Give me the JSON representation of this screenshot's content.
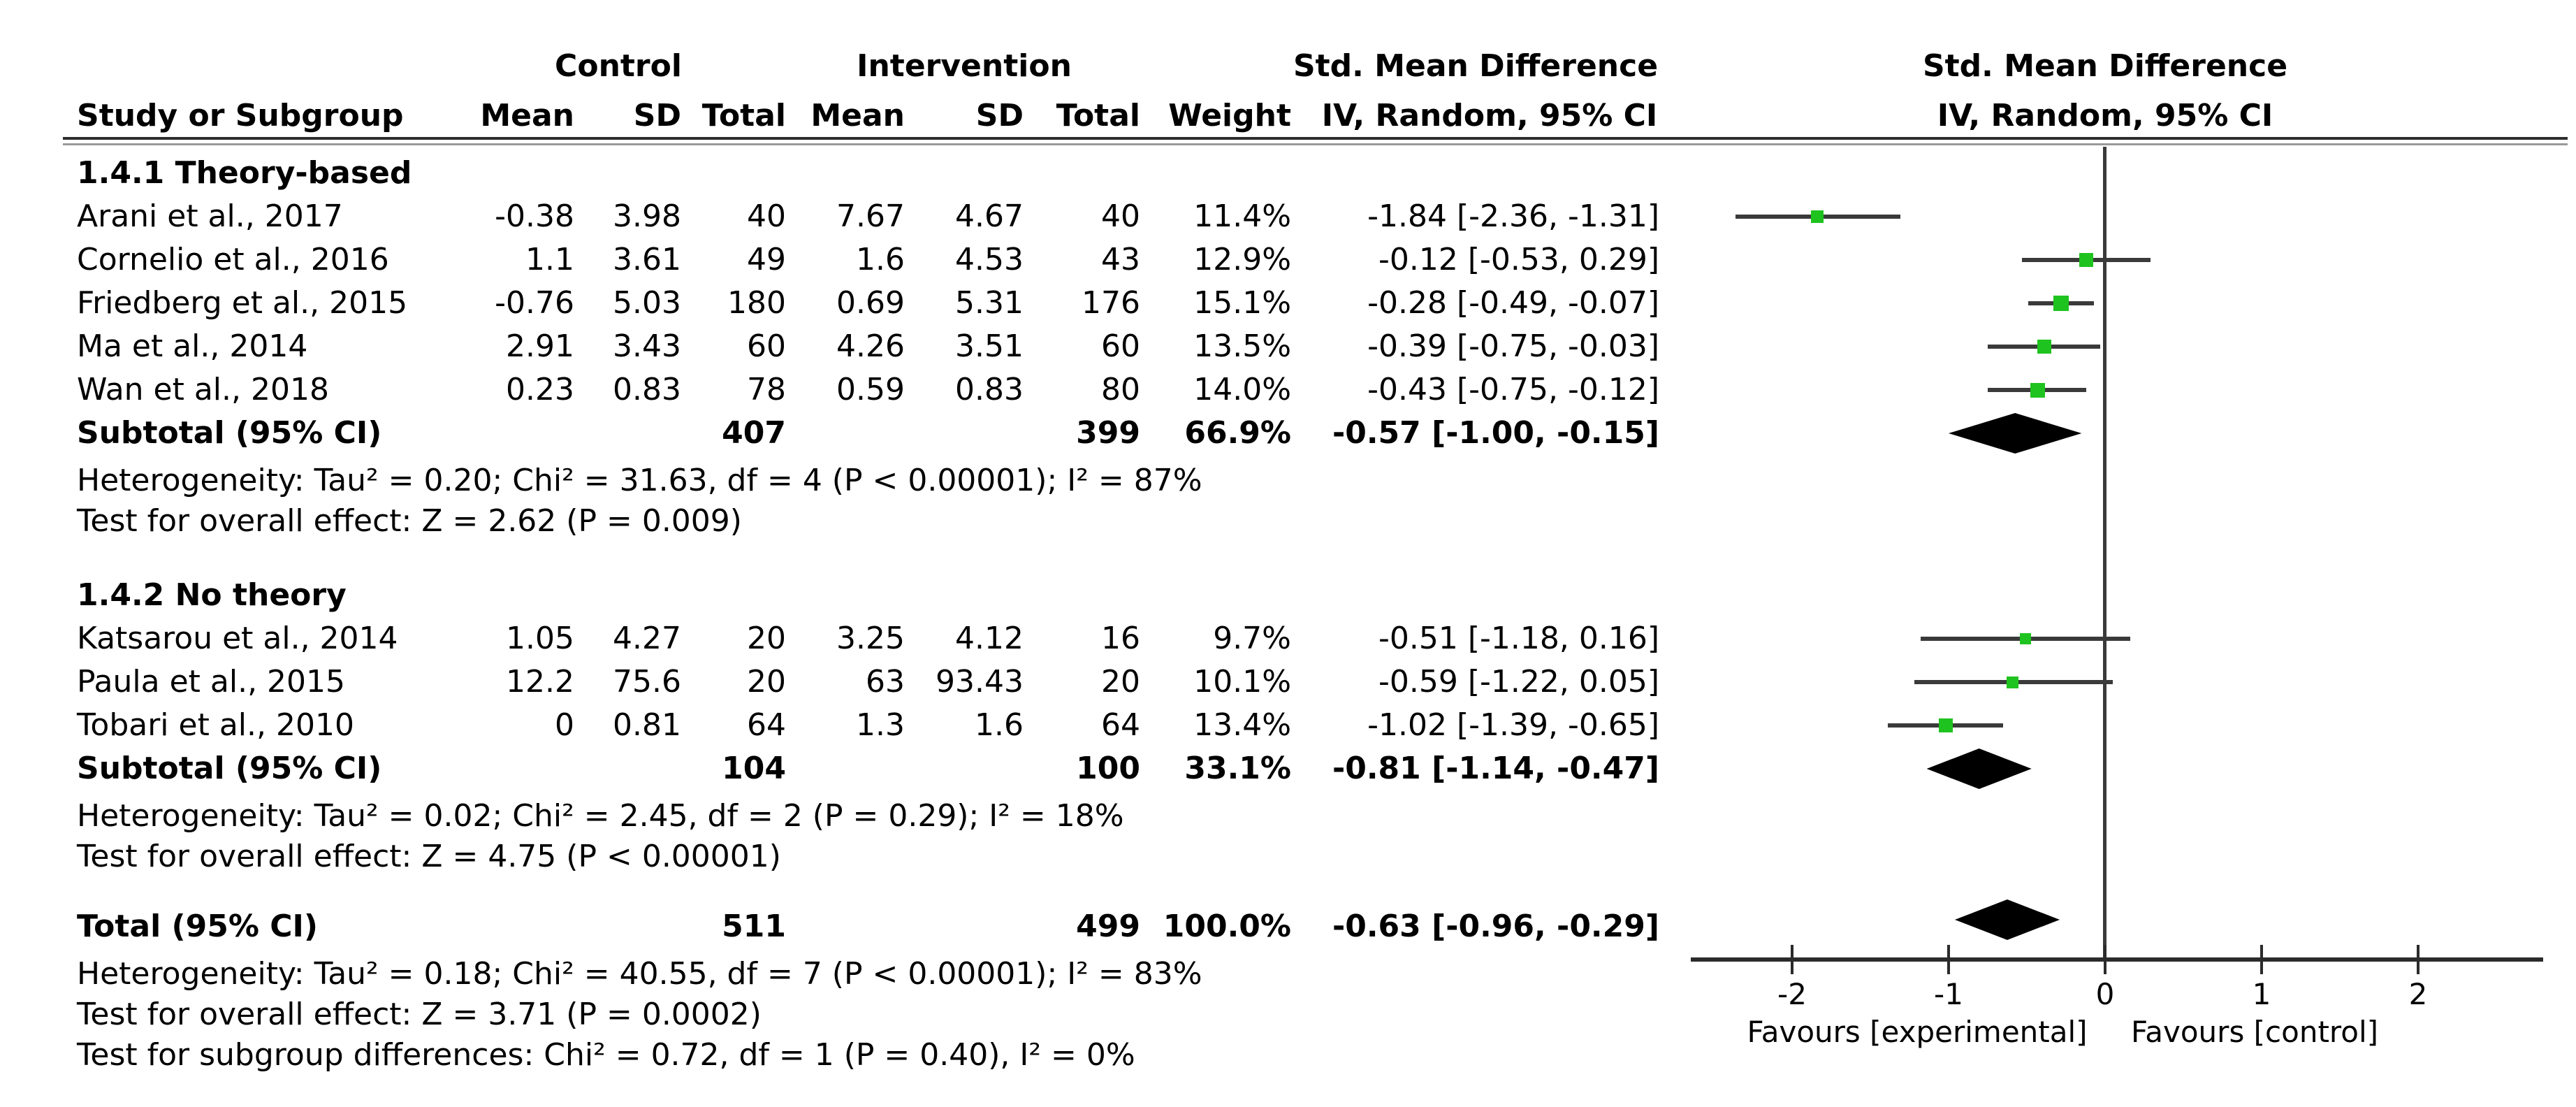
{
  "colors": {
    "marker_green": "#1fc31f",
    "line_gray": "#3a3a3a",
    "diamond_black": "#000000"
  },
  "header": {
    "study_col": "Study or Subgroup",
    "control_label": "Control",
    "intervention_label": "Intervention",
    "smd_table_label": "Std. Mean Difference",
    "smd_plot_label": "Std. Mean Difference",
    "iv_table_label": "IV, Random, 95% CI",
    "iv_plot_label": "IV, Random, 95% CI",
    "mean_col": "Mean",
    "sd_col": "SD",
    "total_col": "Total",
    "weight_col": "Weight"
  },
  "sections": [
    {
      "title": "1.4.1 Theory-based",
      "studies": [
        {
          "name": "Arani et al., 2017",
          "c_mean": "-0.38",
          "c_sd": "3.98",
          "c_total": "40",
          "i_mean": "7.67",
          "i_sd": "4.67",
          "i_total": "40",
          "weight": "11.4%",
          "ci_text": "-1.84 [-2.36, -1.31]",
          "est": -1.84,
          "lo": -2.36,
          "hi": -1.31,
          "weight_val": 11.4
        },
        {
          "name": "Cornelio et al., 2016",
          "c_mean": "1.1",
          "c_sd": "3.61",
          "c_total": "49",
          "i_mean": "1.6",
          "i_sd": "4.53",
          "i_total": "43",
          "weight": "12.9%",
          "ci_text": "-0.12 [-0.53, 0.29]",
          "est": -0.12,
          "lo": -0.53,
          "hi": 0.29,
          "weight_val": 12.9
        },
        {
          "name": "Friedberg et al., 2015",
          "c_mean": "-0.76",
          "c_sd": "5.03",
          "c_total": "180",
          "i_mean": "0.69",
          "i_sd": "5.31",
          "i_total": "176",
          "weight": "15.1%",
          "ci_text": "-0.28 [-0.49, -0.07]",
          "est": -0.28,
          "lo": -0.49,
          "hi": -0.07,
          "weight_val": 15.1
        },
        {
          "name": "Ma et al., 2014",
          "c_mean": "2.91",
          "c_sd": "3.43",
          "c_total": "60",
          "i_mean": "4.26",
          "i_sd": "3.51",
          "i_total": "60",
          "weight": "13.5%",
          "ci_text": "-0.39 [-0.75, -0.03]",
          "est": -0.39,
          "lo": -0.75,
          "hi": -0.03,
          "weight_val": 13.5
        },
        {
          "name": "Wan et al., 2018",
          "c_mean": "0.23",
          "c_sd": "0.83",
          "c_total": "78",
          "i_mean": "0.59",
          "i_sd": "0.83",
          "i_total": "80",
          "weight": "14.0%",
          "ci_text": "-0.43 [-0.75, -0.12]",
          "est": -0.43,
          "lo": -0.75,
          "hi": -0.12,
          "weight_val": 14.0
        }
      ],
      "subtotal": {
        "label": "Subtotal (95% CI)",
        "c_total": "407",
        "i_total": "399",
        "weight": "66.9%",
        "ci_text": "-0.57 [-1.00, -0.15]",
        "est": -0.57,
        "lo": -1.0,
        "hi": -0.15
      },
      "heterogeneity": "Heterogeneity: Tau² = 0.20; Chi² = 31.63, df = 4 (P < 0.00001); I² = 87%",
      "overall_effect": "Test for overall effect: Z = 2.62 (P = 0.009)"
    },
    {
      "title": "1.4.2 No theory",
      "studies": [
        {
          "name": "Katsarou et al., 2014",
          "c_mean": "1.05",
          "c_sd": "4.27",
          "c_total": "20",
          "i_mean": "3.25",
          "i_sd": "4.12",
          "i_total": "16",
          "weight": "9.7%",
          "ci_text": "-0.51 [-1.18, 0.16]",
          "est": -0.51,
          "lo": -1.18,
          "hi": 0.16,
          "weight_val": 9.7
        },
        {
          "name": "Paula et al., 2015",
          "c_mean": "12.2",
          "c_sd": "75.6",
          "c_total": "20",
          "i_mean": "63",
          "i_sd": "93.43",
          "i_total": "20",
          "weight": "10.1%",
          "ci_text": "-0.59 [-1.22, 0.05]",
          "est": -0.59,
          "lo": -1.22,
          "hi": 0.05,
          "weight_val": 10.1
        },
        {
          "name": "Tobari et al., 2010",
          "c_mean": "0",
          "c_sd": "0.81",
          "c_total": "64",
          "i_mean": "1.3",
          "i_sd": "1.6",
          "i_total": "64",
          "weight": "13.4%",
          "ci_text": "-1.02 [-1.39, -0.65]",
          "est": -1.02,
          "lo": -1.39,
          "hi": -0.65,
          "weight_val": 13.4
        }
      ],
      "subtotal": {
        "label": "Subtotal (95% CI)",
        "c_total": "104",
        "i_total": "100",
        "weight": "33.1%",
        "ci_text": "-0.81 [-1.14, -0.47]",
        "est": -0.81,
        "lo": -1.14,
        "hi": -0.47
      },
      "heterogeneity": "Heterogeneity: Tau² = 0.02; Chi² = 2.45, df = 2 (P = 0.29); I² = 18%",
      "overall_effect": "Test for overall effect: Z = 4.75 (P < 0.00001)"
    }
  ],
  "total": {
    "label": "Total (95% CI)",
    "c_total": "511",
    "i_total": "499",
    "weight": "100.0%",
    "ci_text": "-0.63 [-0.96, -0.29]",
    "est": -0.63,
    "lo": -0.96,
    "hi": -0.29
  },
  "footer_stats": [
    "Heterogeneity: Tau² = 0.18; Chi² = 40.55, df = 7 (P < 0.00001); I² = 83%",
    "Test for overall effect: Z = 3.71 (P = 0.0002)",
    "Test for subgroup differences: Chi² = 0.72, df = 1 (P = 0.40), I² = 0%"
  ],
  "axis": {
    "ticks": [
      -2,
      -1,
      0,
      1,
      2
    ],
    "tick_labels": [
      "-2",
      "-1",
      "0",
      "1",
      "2"
    ],
    "favours_left": "Favours [experimental]",
    "favours_right": "Favours [control]"
  },
  "chart_data": {
    "type": "scatter",
    "variant": "forest-plot",
    "title": "Std. Mean Difference — IV, Random, 95% CI",
    "xlabel_left": "Favours [experimental]",
    "xlabel_right": "Favours [control]",
    "xlim": [
      -2.65,
      2.8
    ],
    "x_ticks": [
      -2,
      -1,
      0,
      1,
      2
    ],
    "grid": false,
    "groups": [
      {
        "name": "1.4.1 Theory-based",
        "points": [
          {
            "study": "Arani et al., 2017",
            "est": -1.84,
            "lo": -2.36,
            "hi": -1.31,
            "weight_pct": 11.4
          },
          {
            "study": "Cornelio et al., 2016",
            "est": -0.12,
            "lo": -0.53,
            "hi": 0.29,
            "weight_pct": 12.9
          },
          {
            "study": "Friedberg et al., 2015",
            "est": -0.28,
            "lo": -0.49,
            "hi": -0.07,
            "weight_pct": 15.1
          },
          {
            "study": "Ma et al., 2014",
            "est": -0.39,
            "lo": -0.75,
            "hi": -0.03,
            "weight_pct": 13.5
          },
          {
            "study": "Wan et al., 2018",
            "est": -0.43,
            "lo": -0.75,
            "hi": -0.12,
            "weight_pct": 14.0
          }
        ],
        "subtotal_diamond": {
          "est": -0.57,
          "lo": -1.0,
          "hi": -0.15,
          "weight_pct": 66.9
        }
      },
      {
        "name": "1.4.2 No theory",
        "points": [
          {
            "study": "Katsarou et al., 2014",
            "est": -0.51,
            "lo": -1.18,
            "hi": 0.16,
            "weight_pct": 9.7
          },
          {
            "study": "Paula et al., 2015",
            "est": -0.59,
            "lo": -1.22,
            "hi": 0.05,
            "weight_pct": 10.1
          },
          {
            "study": "Tobari et al., 2010",
            "est": -1.02,
            "lo": -1.39,
            "hi": -0.65,
            "weight_pct": 13.4
          }
        ],
        "subtotal_diamond": {
          "est": -0.81,
          "lo": -1.14,
          "hi": -0.47,
          "weight_pct": 33.1
        }
      }
    ],
    "overall_diamond": {
      "est": -0.63,
      "lo": -0.96,
      "hi": -0.29,
      "weight_pct": 100.0
    }
  }
}
